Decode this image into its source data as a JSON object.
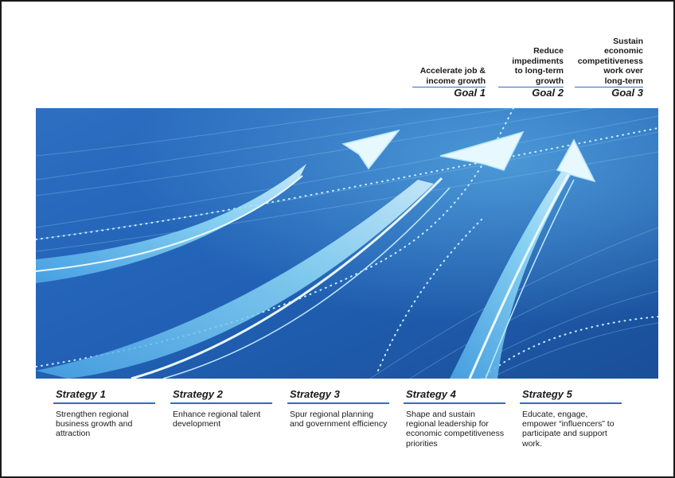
{
  "goals": [
    {
      "description": "Accelerate job &\nincome growth",
      "label": "Goal 1"
    },
    {
      "description": "Reduce\nimpediments\nto long-term\ngrowth",
      "label": "Goal 2"
    },
    {
      "description": "Sustain\neconomic\ncompetitiveness\nwork over\nlong-term",
      "label": "Goal 3"
    }
  ],
  "strategies": [
    {
      "title": "Strategy 1",
      "body": "Strengthen regional business growth and attraction"
    },
    {
      "title": "Strategy 2",
      "body": "Enhance regional talent development"
    },
    {
      "title": "Strategy 3",
      "body": "Spur regional planning and government efficiency"
    },
    {
      "title": "Strategy 4",
      "body": "Shape and sustain regional leadership for economic competitiveness priorities"
    },
    {
      "title": "Strategy 5",
      "body": "Educate, engage, empower “influencers” to participate and support work."
    }
  ],
  "colors": {
    "accent": "#2a6fc4",
    "banner_dark": "#1f5aa8",
    "banner_light": "#7fd2f4",
    "arrow": "#e8f8ff"
  },
  "banner_icon": "rising-arrows-illustration"
}
